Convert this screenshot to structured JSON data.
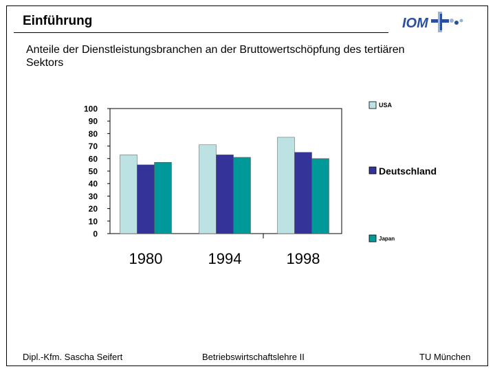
{
  "header": {
    "title": "Einführung",
    "logo_text": "IOM"
  },
  "subtitle": "Anteile der Dienstleistungsbranchen an der Bruttowertschöpfung des tertiären Sektors",
  "chart_data": {
    "type": "bar",
    "categories": [
      "1980",
      "1994",
      "1998"
    ],
    "series": [
      {
        "name": "USA",
        "values": [
          63,
          71,
          77
        ],
        "color": "#bde2e4"
      },
      {
        "name": "Deutschland",
        "values": [
          55,
          63,
          65
        ],
        "color": "#33339a"
      },
      {
        "name": "Japan",
        "values": [
          57,
          61,
          60
        ],
        "color": "#009999"
      }
    ],
    "ylim": [
      0,
      100
    ],
    "yticks": [
      "0",
      "10",
      "20",
      "30",
      "40",
      "50",
      "60",
      "70",
      "80",
      "90",
      "100"
    ],
    "grid": false,
    "legend_position": "right"
  },
  "footer": {
    "author": "Dipl.-Kfm. Sascha Seifert",
    "course": "Betriebswirtschaftslehre II",
    "institution": "TU München"
  },
  "colors": {
    "logo_blue": "#2a4f9e",
    "logo_light": "#9bb2d8"
  }
}
